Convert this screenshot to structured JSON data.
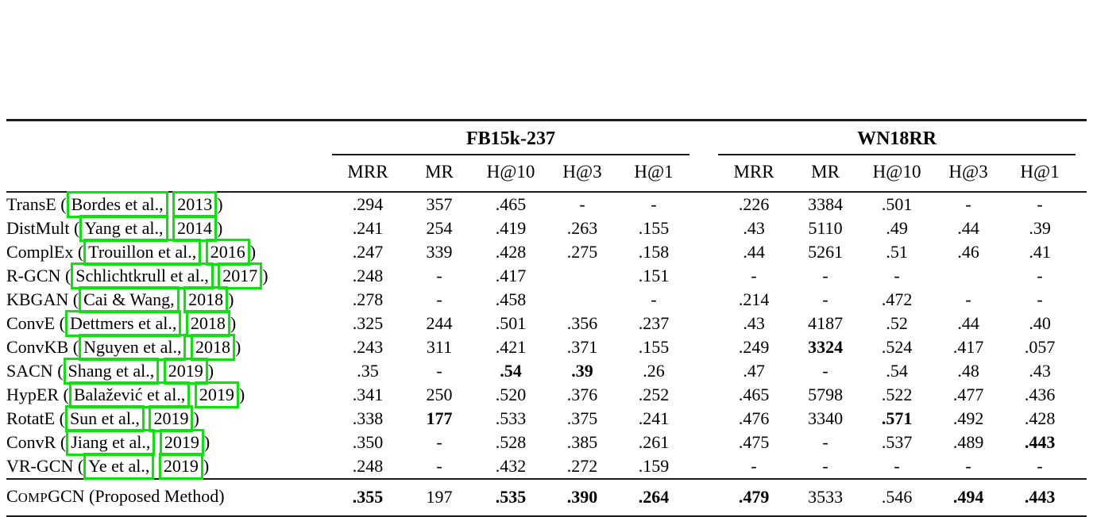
{
  "colors": {
    "citation_box": "#0ce20c",
    "rule": "#1b1b1b"
  },
  "table": {
    "label_format": {
      "open": " (",
      "sep": " ",
      "close": ")"
    },
    "groups": [
      {
        "label": "FB15k-237"
      },
      {
        "label": "WN18RR"
      }
    ],
    "metrics": [
      "MRR",
      "MR",
      "H@10",
      "H@3",
      "H@1"
    ],
    "rows": [
      {
        "method": "TransE",
        "author": "Bordes et al.,",
        "year": "2013",
        "fb": [
          ".294",
          "357",
          ".465",
          "-",
          "-"
        ],
        "fb_bold": [],
        "wn": [
          ".226",
          "3384",
          ".501",
          "-",
          "-"
        ],
        "wn_bold": []
      },
      {
        "method": "DistMult",
        "author": "Yang et al.,",
        "year": "2014",
        "fb": [
          ".241",
          "254",
          ".419",
          ".263",
          ".155"
        ],
        "fb_bold": [],
        "wn": [
          ".43",
          "5110",
          ".49",
          ".44",
          ".39"
        ],
        "wn_bold": []
      },
      {
        "method": "ComplEx",
        "author": "Trouillon et al.,",
        "year": "2016",
        "fb": [
          ".247",
          "339",
          ".428",
          ".275",
          ".158"
        ],
        "fb_bold": [],
        "wn": [
          ".44",
          "5261",
          ".51",
          ".46",
          ".41"
        ],
        "wn_bold": []
      },
      {
        "method": "R-GCN",
        "author": "Schlichtkrull et al.,",
        "year": "2017",
        "fb": [
          ".248",
          "-",
          ".417",
          "",
          ".151"
        ],
        "fb_bold": [],
        "wn": [
          "-",
          "-",
          "-",
          "",
          "-"
        ],
        "wn_bold": []
      },
      {
        "method": "KBGAN",
        "author": "Cai & Wang,",
        "year": "2018",
        "fb": [
          ".278",
          "-",
          ".458",
          "",
          "-"
        ],
        "fb_bold": [],
        "wn": [
          ".214",
          "-",
          ".472",
          "-",
          "-"
        ],
        "wn_bold": []
      },
      {
        "method": "ConvE",
        "author": "Dettmers et al.,",
        "year": "2018",
        "fb": [
          ".325",
          "244",
          ".501",
          ".356",
          ".237"
        ],
        "fb_bold": [],
        "wn": [
          ".43",
          "4187",
          ".52",
          ".44",
          ".40"
        ],
        "wn_bold": []
      },
      {
        "method": "ConvKB",
        "author": "Nguyen et al.,",
        "year": "2018",
        "fb": [
          ".243",
          "311",
          ".421",
          ".371",
          ".155"
        ],
        "fb_bold": [],
        "wn": [
          ".249",
          "3324",
          ".524",
          ".417",
          ".057"
        ],
        "wn_bold": [
          1
        ]
      },
      {
        "method": "SACN",
        "author": "Shang et al.,",
        "year": "2019",
        "fb": [
          ".35",
          "-",
          ".54",
          ".39",
          ".26"
        ],
        "fb_bold": [
          2,
          3
        ],
        "wn": [
          ".47",
          "-",
          ".54",
          ".48",
          ".43"
        ],
        "wn_bold": []
      },
      {
        "method": "HypER",
        "author": "Balažević et al.,",
        "year": "2019",
        "fb": [
          ".341",
          "250",
          ".520",
          ".376",
          ".252"
        ],
        "fb_bold": [],
        "wn": [
          ".465",
          "5798",
          ".522",
          ".477",
          ".436"
        ],
        "wn_bold": []
      },
      {
        "method": "RotatE",
        "author": "Sun et al.,",
        "year": "2019",
        "fb": [
          ".338",
          "177",
          ".533",
          ".375",
          ".241"
        ],
        "fb_bold": [
          1
        ],
        "wn": [
          ".476",
          "3340",
          ".571",
          ".492",
          ".428"
        ],
        "wn_bold": [
          2
        ]
      },
      {
        "method": "ConvR",
        "author": "Jiang et al.,",
        "year": "2019",
        "fb": [
          ".350",
          "-",
          ".528",
          ".385",
          ".261"
        ],
        "fb_bold": [],
        "wn": [
          ".475",
          "-",
          ".537",
          ".489",
          ".443"
        ],
        "wn_bold": [
          4
        ]
      },
      {
        "method": "VR-GCN",
        "author": "Ye et al.,",
        "year": "2019",
        "fb": [
          ".248",
          "-",
          ".432",
          ".272",
          ".159"
        ],
        "fb_bold": [],
        "wn": [
          "-",
          "-",
          "-",
          "-",
          "-"
        ],
        "wn_bold": []
      }
    ],
    "final_row": {
      "method_parts": {
        "c": "C",
        "omp": "OMP",
        "rest": "GCN (Proposed Method)"
      },
      "fb": [
        ".355",
        "197",
        ".535",
        ".390",
        ".264"
      ],
      "fb_bold": [
        0,
        2,
        3,
        4
      ],
      "wn": [
        ".479",
        "3533",
        ".546",
        ".494",
        ".443"
      ],
      "wn_bold": [
        0,
        3,
        4
      ]
    }
  }
}
